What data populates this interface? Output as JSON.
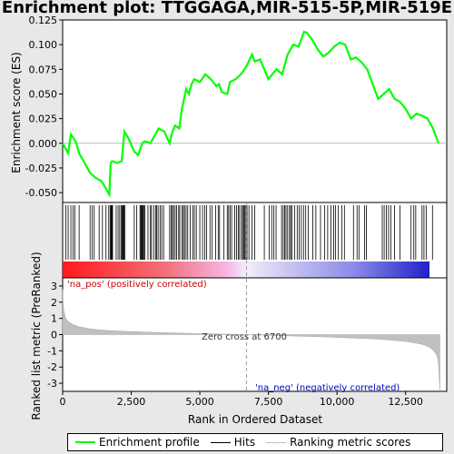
{
  "chart_data": {
    "type": "line",
    "title": "Enrichment plot: TTGGAGA,MIR-515-5P,MIR-519E",
    "top_panel": {
      "ylabel": "Enrichment score (ES)",
      "ylim": [
        -0.06,
        0.125
      ],
      "yticks": [
        "-0.050",
        "-0.025",
        "0.000",
        "0.025",
        "0.050",
        "0.075",
        "0.100",
        "0.125"
      ],
      "series": [
        {
          "name": "Enrichment profile",
          "color": "#00ff00",
          "x": [
            0,
            100,
            200,
            300,
            400,
            500,
            600,
            800,
            1000,
            1200,
            1400,
            1500,
            1600,
            1700,
            1750,
            1800,
            2000,
            2150,
            2250,
            2400,
            2600,
            2750,
            2900,
            3000,
            3200,
            3400,
            3500,
            3700,
            3900,
            4000,
            4100,
            4250,
            4350,
            4500,
            4600,
            4700,
            4800,
            5000,
            5200,
            5400,
            5600,
            5700,
            5800,
            6000,
            6100,
            6300,
            6500,
            6700,
            6900,
            7000,
            7200,
            7500,
            7700,
            7800,
            8000,
            8200,
            8400,
            8600,
            8800,
            8900,
            9100,
            9300,
            9500,
            9700,
            9900,
            10100,
            10300,
            10500,
            10700,
            10900,
            11100,
            11300,
            11500,
            11700,
            11900,
            12100,
            12300,
            12500,
            12700,
            12900,
            13100,
            13300,
            13500,
            13700
          ],
          "values": [
            0.0,
            -0.005,
            -0.01,
            0.009,
            0.005,
            0.0,
            -0.01,
            -0.02,
            -0.03,
            -0.035,
            -0.038,
            -0.042,
            -0.047,
            -0.052,
            -0.02,
            -0.018,
            -0.02,
            -0.018,
            0.012,
            0.005,
            -0.008,
            -0.012,
            0.0,
            0.002,
            0.0,
            0.01,
            0.015,
            0.012,
            0.0,
            0.012,
            0.018,
            0.015,
            0.035,
            0.055,
            0.05,
            0.06,
            0.065,
            0.062,
            0.07,
            0.065,
            0.058,
            0.06,
            0.052,
            0.05,
            0.062,
            0.065,
            0.07,
            0.078,
            0.09,
            0.083,
            0.085,
            0.065,
            0.072,
            0.075,
            0.07,
            0.09,
            0.1,
            0.098,
            0.113,
            0.112,
            0.105,
            0.095,
            0.088,
            0.092,
            0.098,
            0.102,
            0.1,
            0.085,
            0.087,
            0.082,
            0.075,
            0.06,
            0.045,
            0.05,
            0.055,
            0.045,
            0.042,
            0.035,
            0.025,
            0.03,
            0.028,
            0.025,
            0.015,
            0.0
          ]
        }
      ]
    },
    "hits_panel": {
      "legend_label": "Hits",
      "positions": [
        120,
        200,
        300,
        380,
        450,
        600,
        1000,
        1080,
        1150,
        1330,
        1450,
        1580,
        1680,
        1730,
        1760,
        1780,
        1800,
        1820,
        1950,
        2020,
        2080,
        2130,
        2170,
        2190,
        2210,
        2240,
        2270,
        2610,
        2700,
        2820,
        2850,
        2880,
        2900,
        2930,
        2960,
        3000,
        3110,
        3200,
        3240,
        3320,
        3390,
        3430,
        3480,
        3550,
        3610,
        3680,
        3900,
        3950,
        4000,
        4040,
        4100,
        4150,
        4230,
        4270,
        4350,
        4400,
        4440,
        4500,
        4560,
        4650,
        4740,
        4800,
        4870,
        5000,
        5100,
        5180,
        5250,
        5370,
        5450,
        5580,
        5670,
        5720,
        5880,
        6000,
        6050,
        6100,
        6160,
        6270,
        6340,
        6400,
        6450,
        6520,
        6560,
        6600,
        6640,
        6680,
        6720,
        6790,
        6900,
        7000,
        7350,
        7530,
        7620,
        7700,
        7780,
        7980,
        8040,
        8090,
        8140,
        8200,
        8270,
        8310,
        8360,
        8460,
        8550,
        8620,
        8700,
        8780,
        8860,
        8950,
        9120,
        9230,
        9400,
        9550,
        9660,
        9780,
        9880,
        9950,
        10050,
        10180,
        10270,
        10600,
        10730,
        10800,
        11000,
        11070,
        11650,
        11720,
        11800,
        11880,
        11960,
        12100,
        12300,
        12700,
        12800,
        12870,
        13100,
        13170,
        13250,
        13480
      ]
    },
    "bottom_panel": {
      "ylabel": "Ranked list metric (PreRanked)",
      "xlabel": "Rank in Ordered Dataset",
      "ylim": [
        -3.5,
        3.5
      ],
      "yticks": [
        "-3",
        "-2",
        "-1",
        "0",
        "1",
        "2",
        "3"
      ],
      "xticks": [
        "0",
        "2,500",
        "5,000",
        "7,500",
        "10,000",
        "12,500"
      ],
      "xlim": [
        0,
        14000
      ],
      "metric_x": [
        0,
        20,
        50,
        100,
        200,
        400,
        600,
        1000,
        1500,
        2000,
        3000,
        4000,
        5000,
        6000,
        6700,
        7500,
        8500,
        9500,
        10500,
        11500,
        12000,
        12500,
        12800,
        13000,
        13200,
        13400,
        13500,
        13600,
        13650,
        13700,
        13750
      ],
      "metric_y": [
        2.8,
        1.8,
        1.4,
        1.05,
        0.8,
        0.6,
        0.48,
        0.35,
        0.27,
        0.22,
        0.15,
        0.1,
        0.05,
        0.02,
        0.0,
        -0.04,
        -0.09,
        -0.14,
        -0.2,
        -0.28,
        -0.34,
        -0.42,
        -0.5,
        -0.56,
        -0.65,
        -0.8,
        -0.95,
        -1.15,
        -1.35,
        -1.7,
        -3.5
      ],
      "zero_cross": 6700,
      "zero_cross_label": "Zero cross at 6700",
      "pos_label": "'na_pos' (positively correlated)",
      "neg_label": "'na_neg' (negatively correlated)",
      "legend_label": "Ranking metric scores"
    },
    "legend": [
      "Enrichment profile",
      "Hits",
      "Ranking metric scores"
    ],
    "colors": {
      "profile": "#00ff00",
      "pos": "#e8001c",
      "neg": "#3333cc",
      "metric": "#c0c0c0"
    }
  }
}
